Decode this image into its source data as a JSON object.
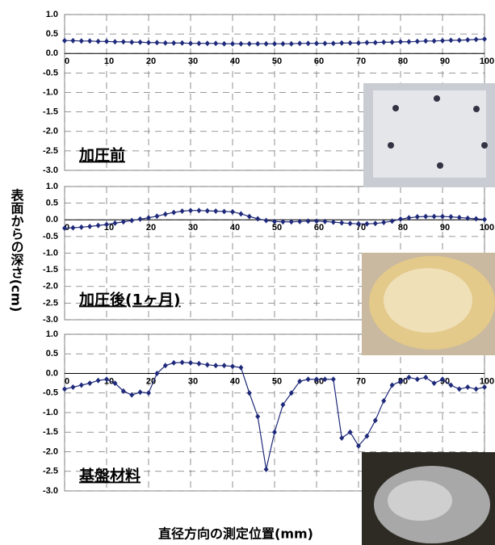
{
  "ylabel": "表面からの深さ(cm)",
  "xlabel": "直径方向の測定位置(mm)",
  "chart_data": [
    {
      "type": "line",
      "annotation": "加圧前",
      "x": [
        0,
        2,
        4,
        6,
        8,
        10,
        12,
        14,
        16,
        18,
        20,
        22,
        24,
        26,
        28,
        30,
        32,
        34,
        36,
        38,
        40,
        42,
        44,
        46,
        48,
        50,
        52,
        54,
        56,
        58,
        60,
        62,
        64,
        66,
        68,
        70,
        72,
        74,
        76,
        78,
        80,
        82,
        84,
        86,
        88,
        90,
        92,
        94,
        96,
        98,
        100
      ],
      "series": [
        {
          "color": "#1f2a7a",
          "values": [
            0.33,
            0.33,
            0.32,
            0.32,
            0.31,
            0.31,
            0.3,
            0.3,
            0.29,
            0.29,
            0.28,
            0.28,
            0.27,
            0.27,
            0.27,
            0.26,
            0.26,
            0.26,
            0.26,
            0.25,
            0.25,
            0.25,
            0.25,
            0.25,
            0.25,
            0.25,
            0.25,
            0.25,
            0.26,
            0.26,
            0.26,
            0.26,
            0.26,
            0.27,
            0.27,
            0.27,
            0.28,
            0.28,
            0.29,
            0.29,
            0.3,
            0.3,
            0.31,
            0.32,
            0.32,
            0.33,
            0.34,
            0.34,
            0.35,
            0.36,
            0.37
          ]
        }
      ],
      "xlim": [
        0,
        100
      ],
      "ylim": [
        -3,
        1
      ],
      "xticks": [
        0,
        10,
        20,
        30,
        40,
        50,
        60,
        70,
        80,
        90,
        100
      ],
      "yticks": [
        {
          "value": 1,
          "label": "1.0"
        },
        {
          "value": 0.5,
          "label": "0.5"
        },
        {
          "value": 0,
          "label": "0.0"
        },
        {
          "value": -0.5,
          "label": "-0.5"
        },
        {
          "value": -1,
          "label": "-1.0"
        },
        {
          "value": -1.5,
          "label": "-1.5"
        },
        {
          "value": -2,
          "label": "-2.0"
        },
        {
          "value": -2.5,
          "label": "-2.5"
        },
        {
          "value": -3,
          "label": "-3.0"
        }
      ],
      "grid": true
    },
    {
      "type": "line",
      "annotation": "加圧後(1ヶ月)",
      "x": [
        0,
        2,
        4,
        6,
        8,
        10,
        12,
        14,
        16,
        18,
        20,
        22,
        24,
        26,
        28,
        30,
        32,
        34,
        36,
        38,
        40,
        42,
        44,
        46,
        48,
        50,
        52,
        54,
        56,
        58,
        60,
        62,
        64,
        66,
        68,
        70,
        72,
        74,
        76,
        78,
        80,
        82,
        84,
        86,
        88,
        90,
        92,
        94,
        96,
        98,
        100
      ],
      "series": [
        {
          "color": "#1f2a7a",
          "values": [
            -0.25,
            -0.24,
            -0.22,
            -0.2,
            -0.17,
            -0.14,
            -0.1,
            -0.06,
            -0.02,
            0.02,
            0.06,
            0.11,
            0.17,
            0.22,
            0.26,
            0.28,
            0.28,
            0.27,
            0.26,
            0.25,
            0.24,
            0.18,
            0.1,
            0.03,
            -0.02,
            -0.05,
            -0.06,
            -0.06,
            -0.05,
            -0.04,
            -0.04,
            -0.05,
            -0.07,
            -0.09,
            -0.11,
            -0.12,
            -0.12,
            -0.11,
            -0.08,
            -0.04,
            0.02,
            0.06,
            0.09,
            0.1,
            0.1,
            0.1,
            0.09,
            0.07,
            0.05,
            0.03,
            0.01
          ]
        }
      ],
      "xlim": [
        0,
        100
      ],
      "ylim": [
        -3,
        1
      ],
      "xticks": [
        0,
        10,
        20,
        30,
        40,
        50,
        60,
        70,
        80,
        90,
        100
      ],
      "yticks": [
        {
          "value": 1,
          "label": "1.0"
        },
        {
          "value": 0.5,
          "label": "0.5"
        },
        {
          "value": 0,
          "label": "0.0"
        },
        {
          "value": -0.5,
          "label": "-0.5"
        },
        {
          "value": -1,
          "label": "-1.0"
        },
        {
          "value": -1.5,
          "label": "-1.5"
        },
        {
          "value": -2,
          "label": "-2.0"
        },
        {
          "value": -2.5,
          "label": "-2.5"
        },
        {
          "value": -3,
          "label": "-3.0"
        }
      ],
      "grid": true
    },
    {
      "type": "line",
      "annotation": "基盤材料",
      "x": [
        0,
        2,
        4,
        6,
        8,
        10,
        12,
        14,
        16,
        18,
        20,
        22,
        24,
        26,
        28,
        30,
        32,
        34,
        36,
        38,
        40,
        42,
        44,
        46,
        48,
        50,
        52,
        54,
        56,
        58,
        60,
        62,
        64,
        66,
        68,
        70,
        72,
        74,
        76,
        78,
        80,
        82,
        84,
        86,
        88,
        90,
        92,
        94,
        96,
        98,
        100
      ],
      "series": [
        {
          "color": "#1f2a7a",
          "values": [
            -0.4,
            -0.35,
            -0.3,
            -0.25,
            -0.18,
            -0.15,
            -0.25,
            -0.45,
            -0.55,
            -0.48,
            -0.5,
            0.0,
            0.2,
            0.27,
            0.28,
            0.27,
            0.25,
            0.22,
            0.2,
            0.2,
            0.18,
            0.15,
            -0.5,
            -1.1,
            -2.45,
            -1.5,
            -0.8,
            -0.5,
            -0.2,
            -0.15,
            -0.15,
            -0.15,
            -0.15,
            -1.65,
            -1.5,
            -1.85,
            -1.6,
            -1.2,
            -0.7,
            -0.3,
            -0.2,
            -0.1,
            -0.15,
            -0.1,
            -0.25,
            -0.15,
            -0.3,
            -0.4,
            -0.35,
            -0.4,
            -0.35
          ]
        }
      ],
      "xlim": [
        0,
        100
      ],
      "ylim": [
        -3,
        1
      ],
      "xticks": [
        0,
        10,
        20,
        30,
        40,
        50,
        60,
        70,
        80,
        90,
        100
      ],
      "yticks": [
        {
          "value": 1,
          "label": "1.0"
        },
        {
          "value": 0.5,
          "label": "0.5"
        },
        {
          "value": 0,
          "label": "0.0"
        },
        {
          "value": -0.5,
          "label": "-0.5"
        },
        {
          "value": -1,
          "label": "-1.0"
        },
        {
          "value": -1.5,
          "label": "-1.5"
        },
        {
          "value": -2,
          "label": "-2.0"
        },
        {
          "value": -2.5,
          "label": "-2.5"
        },
        {
          "value": -3,
          "label": "-3.0"
        }
      ],
      "grid": true
    }
  ]
}
